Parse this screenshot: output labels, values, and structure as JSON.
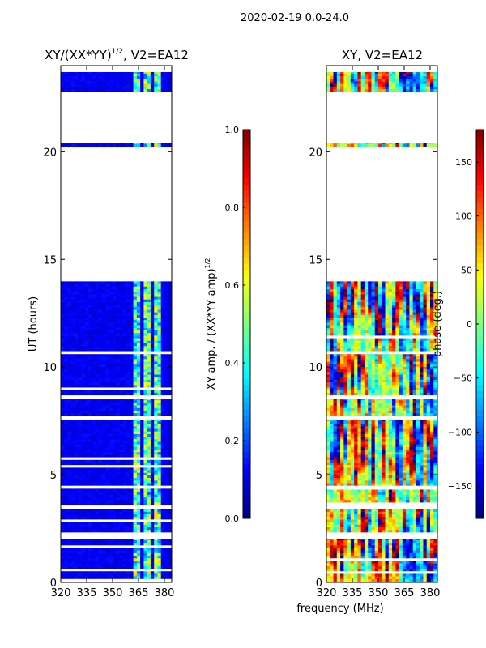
{
  "suptitle": "2020-02-19 0.0-24.0",
  "chart_data": [
    {
      "type": "heatmap",
      "title_main": "XY/(XX*YY)",
      "title_sup": "1/2",
      "title_rest": ", V2=EA12",
      "xlabel": "frequency (MHz)",
      "ylabel": "UT (hours)",
      "xlim": [
        320,
        384
      ],
      "ylim": [
        0,
        24
      ],
      "xticks": [
        "320",
        "335",
        "350",
        "365",
        "380"
      ],
      "xtick_values": [
        320,
        335,
        350,
        365,
        380
      ],
      "yticks": [
        "0",
        "5",
        "10",
        "15",
        "20"
      ],
      "ytick_values": [
        0,
        5,
        10,
        15,
        20
      ],
      "colorbar": {
        "label_main": "XY amp. / (XX*YY amp)",
        "label_sup": "1/2",
        "range": [
          0,
          1
        ],
        "ticks": [
          "0.0",
          "0.2",
          "0.4",
          "0.6",
          "0.8",
          "1.0"
        ],
        "tick_values": [
          0,
          0.2,
          0.4,
          0.6,
          0.8,
          1.0
        ],
        "colormap": "jet"
      },
      "data_ut_ranges": [
        [
          0.05,
          2.03
        ],
        [
          2.33,
          3.4
        ],
        [
          3.6,
          4.35
        ],
        [
          4.5,
          7.55
        ],
        [
          7.75,
          8.5
        ],
        [
          8.7,
          10.6
        ],
        [
          10.75,
          13.98
        ],
        [
          20.25,
          20.4
        ],
        [
          22.8,
          23.7
        ]
      ],
      "band_levels": [
        {
          "freq_range": [
            320,
            362
          ],
          "mean_value": 0.08
        },
        {
          "freq_range": [
            362,
            382
          ],
          "mean_value": 0.45
        }
      ],
      "low_stripe_freqs": [
        366,
        372,
        378,
        381
      ]
    },
    {
      "type": "heatmap",
      "title": "XY, V2=EA12",
      "xlabel": "frequency (MHz)",
      "xlim": [
        320,
        384
      ],
      "ylim": [
        0,
        24
      ],
      "xticks": [
        "320",
        "335",
        "350",
        "365",
        "380"
      ],
      "xtick_values": [
        320,
        335,
        350,
        365,
        380
      ],
      "yticks": [
        "0",
        "5",
        "10",
        "15",
        "20"
      ],
      "ytick_values": [
        0,
        5,
        10,
        15,
        20
      ],
      "colorbar": {
        "label": "phase (deg.)",
        "range": [
          -180,
          180
        ],
        "ticks": [
          "−150",
          "−100",
          "−50",
          "0",
          "50",
          "100",
          "150"
        ],
        "tick_values": [
          -150,
          -100,
          -50,
          0,
          50,
          100,
          150
        ],
        "colormap": "jet"
      },
      "data_ut_ranges": [
        [
          0.05,
          2.03
        ],
        [
          2.33,
          3.4
        ],
        [
          3.6,
          4.35
        ],
        [
          4.5,
          7.55
        ],
        [
          7.75,
          8.5
        ],
        [
          8.7,
          10.6
        ],
        [
          10.75,
          13.98
        ],
        [
          20.25,
          20.4
        ],
        [
          22.8,
          23.7
        ]
      ],
      "band_levels": [
        {
          "freq_range": [
            320,
            362
          ],
          "mean_value": 40
        },
        {
          "freq_range": [
            362,
            382
          ],
          "mean_value": -40
        }
      ]
    }
  ]
}
